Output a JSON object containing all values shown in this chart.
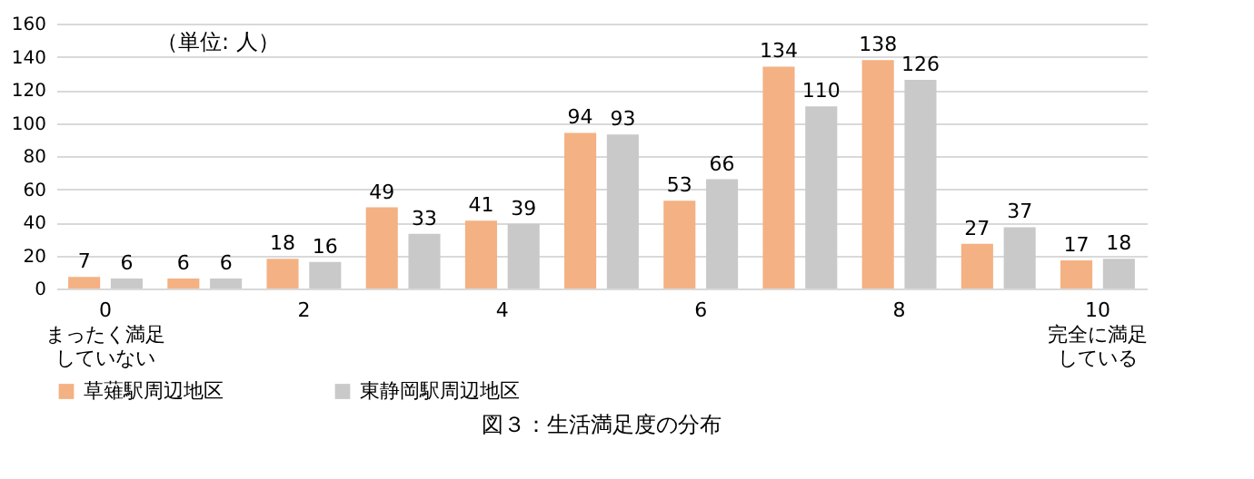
{
  "chart_data": {
    "type": "bar",
    "title": "図３：生活満足度の分布",
    "categories": [
      "0",
      null,
      "2",
      null,
      "4",
      null,
      "6",
      null,
      "8",
      null,
      "10"
    ],
    "series": [
      {
        "name": "草薙駅周辺地区",
        "color": "#f4b183",
        "values": [
          7,
          6,
          18,
          49,
          41,
          94,
          53,
          134,
          138,
          27,
          17
        ]
      },
      {
        "name": "東静岡駅周辺地区",
        "color": "#c9c9c9",
        "values": [
          6,
          6,
          16,
          33,
          39,
          93,
          66,
          110,
          126,
          37,
          18
        ]
      }
    ],
    "ylim": [
      0,
      160
    ],
    "yticks": [
      0,
      20,
      40,
      60,
      80,
      100,
      120,
      140,
      160
    ],
    "grid": "y",
    "data_labels": true,
    "legend": "bottom",
    "annotations": [
      "（単位: 人）",
      "まったく満足していない",
      "完全に満足している"
    ]
  }
}
